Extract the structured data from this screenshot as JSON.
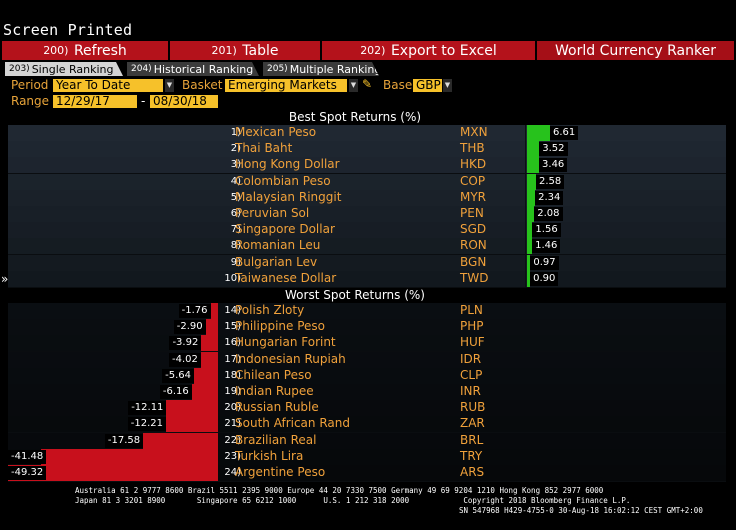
{
  "screen_title": "Screen Printed",
  "toolbar": {
    "refresh": {
      "num": "200)",
      "label": "Refresh"
    },
    "table": {
      "num": "201)",
      "label": "Table"
    },
    "export": {
      "num": "202)",
      "label": "Export to Excel"
    },
    "app_title": "World Currency Ranker"
  },
  "tabs": {
    "single": {
      "num": "203)",
      "label": "Single Ranking"
    },
    "historical": {
      "num": "204)",
      "label": "Historical Ranking"
    },
    "multiple": {
      "num": "205)",
      "label": "Multiple Ranking"
    }
  },
  "controls": {
    "period_label": "Period",
    "period_value": "Year To Date",
    "basket_label": "Basket",
    "basket_value": "Emerging Markets",
    "base_label": "Base",
    "base_value": "GBP",
    "range_label": "Range",
    "range_start": "12/29/17",
    "range_sep": "-",
    "range_end": "08/30/18"
  },
  "colors": {
    "positive": "#27c21c",
    "negative": "#c8101c",
    "accent": "#f6c12a",
    "toolbar": "#b4121b"
  },
  "best_title": "Best Spot Returns (%)",
  "worst_title": "Worst Spot Returns (%)",
  "best": [
    {
      "rank": "1)",
      "name": "Mexican Peso",
      "code": "MXN",
      "value": 6.61
    },
    {
      "rank": "2)",
      "name": "Thai Baht",
      "code": "THB",
      "value": 3.52
    },
    {
      "rank": "3)",
      "name": "Hong Kong Dollar",
      "code": "HKD",
      "value": 3.46
    },
    {
      "rank": "4)",
      "name": "Colombian Peso",
      "code": "COP",
      "value": 2.58
    },
    {
      "rank": "5)",
      "name": "Malaysian Ringgit",
      "code": "MYR",
      "value": 2.34
    },
    {
      "rank": "6)",
      "name": "Peruvian Sol",
      "code": "PEN",
      "value": 2.08
    },
    {
      "rank": "7)",
      "name": "Singapore Dollar",
      "code": "SGD",
      "value": 1.56
    },
    {
      "rank": "8)",
      "name": "Romanian Leu",
      "code": "RON",
      "value": 1.46
    },
    {
      "rank": "9)",
      "name": "Bulgarian Lev",
      "code": "BGN",
      "value": 0.97
    },
    {
      "rank": "10)",
      "name": "Taiwanese Dollar",
      "code": "TWD",
      "value": 0.9
    }
  ],
  "worst": [
    {
      "rank": "14)",
      "name": "Polish Zloty",
      "code": "PLN",
      "value": -1.76
    },
    {
      "rank": "15)",
      "name": "Philippine Peso",
      "code": "PHP",
      "value": -2.9
    },
    {
      "rank": "16)",
      "name": "Hungarian Forint",
      "code": "HUF",
      "value": -3.92
    },
    {
      "rank": "17)",
      "name": "Indonesian Rupiah",
      "code": "IDR",
      "value": -4.02
    },
    {
      "rank": "18)",
      "name": "Chilean Peso",
      "code": "CLP",
      "value": -5.64
    },
    {
      "rank": "19)",
      "name": "Indian Rupee",
      "code": "INR",
      "value": -6.16
    },
    {
      "rank": "20)",
      "name": "Russian Ruble",
      "code": "RUB",
      "value": -12.11
    },
    {
      "rank": "21)",
      "name": "South African Rand",
      "code": "ZAR",
      "value": -12.21
    },
    {
      "rank": "22)",
      "name": "Brazilian Real",
      "code": "BRL",
      "value": -17.58
    },
    {
      "rank": "23)",
      "name": "Turkish Lira",
      "code": "TRY",
      "value": -41.48
    },
    {
      "rank": "24)",
      "name": "Argentine Peso",
      "code": "ARS",
      "value": -49.32
    }
  ],
  "footer": {
    "line1": "Australia 61 2 9777 8600 Brazil 5511 2395 9000 Europe 44 20 7330 7500 Germany 49 69 9204 1210 Hong Kong 852 2977 6000",
    "line2": "Japan 81 3 3201 8900       Singapore 65 6212 1000      U.S. 1 212 318 2000            Copyright 2018 Bloomberg Finance L.P.",
    "line3": "SN 547968 H429-4755-0 30-Aug-18 16:02:12 CEST GMT+2:00"
  }
}
